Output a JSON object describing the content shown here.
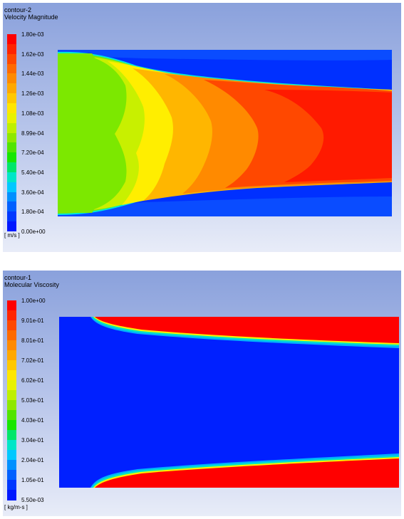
{
  "chart_data": [
    {
      "type": "heatmap",
      "title": "contour-2",
      "subtitle": "Velocity Magnitude",
      "unit": "[ m/s ]",
      "colorbar_ticks": [
        "1.80e-03",
        "1.62e-03",
        "1.44e-03",
        "1.26e-03",
        "1.08e-03",
        "8.99e-04",
        "7.20e-04",
        "5.40e-04",
        "3.60e-04",
        "1.80e-04",
        "0.00e+00"
      ],
      "range": [
        0.0,
        0.0018
      ],
      "levels": 20
    },
    {
      "type": "heatmap",
      "title": "contour-1",
      "subtitle": "Molecular Viscosity",
      "unit": "[ kg/m-s ]",
      "colorbar_ticks": [
        "1.00e+00",
        "9.01e-01",
        "8.01e-01",
        "7.02e-01",
        "6.02e-01",
        "5.03e-01",
        "4.03e-01",
        "3.04e-01",
        "2.04e-01",
        "1.05e-01",
        "5.50e-03"
      ],
      "range": [
        0.0055,
        1.0
      ],
      "levels": 20
    }
  ],
  "colors": {
    "red": "#ff0000",
    "orange_red": "#ff4800",
    "orange": "#ff8a00",
    "orange_yellow": "#ffb600",
    "yellow": "#ffee00",
    "yellow_green": "#c8f000",
    "light_green": "#88e800",
    "green": "#2ee600",
    "cyan": "#00e6d2",
    "sky": "#00a0ff",
    "blue": "#0028ff"
  }
}
